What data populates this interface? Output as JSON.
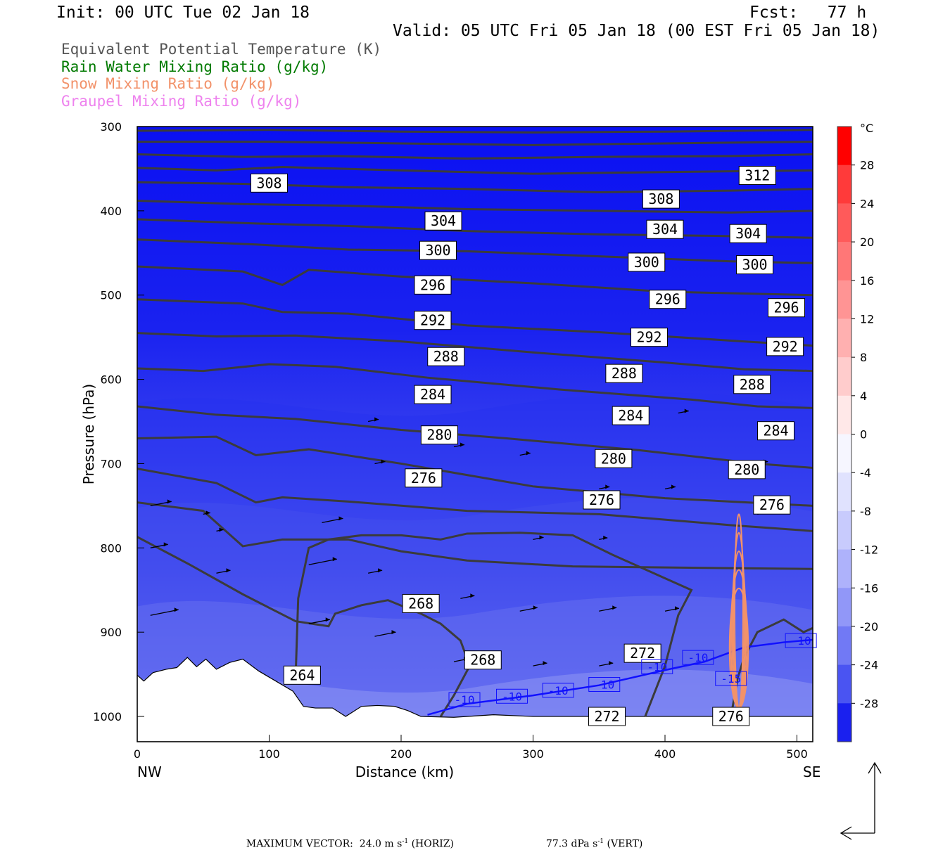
{
  "header": {
    "init": "Init: 00 UTC Tue 02 Jan 18",
    "fcst": "Fcst:   77 h",
    "valid": "Valid: 05 UTC Fri 05 Jan 18 (00 EST Fri 05 Jan 18)"
  },
  "legend": [
    {
      "label": "Equivalent Potential Temperature (K)",
      "color": "#555555"
    },
    {
      "label": "Rain Water Mixing Ratio (g/kg)",
      "color": "#007a00"
    },
    {
      "label": "Snow Mixing Ratio (g/kg)",
      "color": "#f2926a"
    },
    {
      "label": "Graupel Mixing Ratio (g/kg)",
      "color": "#ee82ee"
    }
  ],
  "chart_data": {
    "type": "cross-section contour",
    "ylabel": "Pressure (hPa)",
    "xlabel": "Distance (km)",
    "x_left_label": "NW",
    "x_right_label": "SE",
    "ylim": [
      1030,
      300
    ],
    "xlim": [
      0,
      512
    ],
    "y_ticks": [
      300,
      400,
      500,
      600,
      700,
      800,
      900,
      1000
    ],
    "x_ticks": [
      0,
      100,
      200,
      300,
      400,
      500
    ],
    "theta_e_contours": [
      {
        "value": 312,
        "labels": [
          [
            470,
            358
          ]
        ]
      },
      {
        "value": 308,
        "labels": [
          [
            100,
            367
          ],
          [
            397,
            386
          ]
        ]
      },
      {
        "value": 304,
        "labels": [
          [
            232,
            412
          ],
          [
            400,
            422
          ],
          [
            463,
            427
          ]
        ]
      },
      {
        "value": 300,
        "labels": [
          [
            228,
            447
          ],
          [
            386,
            461
          ],
          [
            468,
            464
          ]
        ]
      },
      {
        "value": 296,
        "labels": [
          [
            224,
            488
          ],
          [
            402,
            505
          ],
          [
            492,
            515
          ]
        ]
      },
      {
        "value": 292,
        "labels": [
          [
            224,
            530
          ],
          [
            388,
            550
          ],
          [
            491,
            561
          ]
        ]
      },
      {
        "value": 288,
        "labels": [
          [
            234,
            573
          ],
          [
            369,
            593
          ],
          [
            466,
            606
          ]
        ]
      },
      {
        "value": 284,
        "labels": [
          [
            224,
            618
          ],
          [
            374,
            643
          ],
          [
            484,
            661
          ]
        ]
      },
      {
        "value": 280,
        "labels": [
          [
            229,
            666
          ],
          [
            361,
            694
          ],
          [
            462,
            707
          ]
        ]
      },
      {
        "value": 276,
        "labels": [
          [
            217,
            717
          ],
          [
            352,
            743
          ],
          [
            481,
            749
          ]
        ]
      },
      {
        "value": 268,
        "labels": [
          [
            215,
            866
          ],
          [
            262,
            933
          ]
        ]
      },
      {
        "value": 272,
        "labels": [
          [
            383,
            925
          ],
          [
            356,
            1000
          ]
        ]
      },
      {
        "value": 264,
        "labels": [
          [
            125,
            951
          ]
        ]
      },
      {
        "value": 276,
        "labels": [
          [
            450,
            1000
          ]
        ]
      }
    ],
    "temperature_contours": [
      {
        "value": -10,
        "labels": [
          [
            248,
            980
          ],
          [
            284,
            976
          ],
          [
            319,
            969
          ],
          [
            354,
            962
          ],
          [
            394,
            941
          ],
          [
            425,
            930
          ],
          [
            503,
            910
          ]
        ]
      },
      {
        "value": -15,
        "labels": [
          [
            450,
            955
          ]
        ]
      }
    ],
    "colorbar": {
      "unit": "°C",
      "ticks": [
        28,
        24,
        20,
        16,
        12,
        8,
        4,
        0,
        -4,
        -8,
        -12,
        -16,
        -20,
        -24,
        -28
      ],
      "range": [
        -32,
        32
      ]
    },
    "max_vector_horiz": "24.0 m s",
    "max_vector_horiz_exp": "-1",
    "max_vector_horiz_dir": "(HORIZ)",
    "max_vector_vert": "77.3 dPa s",
    "max_vector_vert_exp": "-1",
    "max_vector_vert_dir": "(VERT)",
    "footer_label": "MAXIMUM VECTOR:"
  }
}
